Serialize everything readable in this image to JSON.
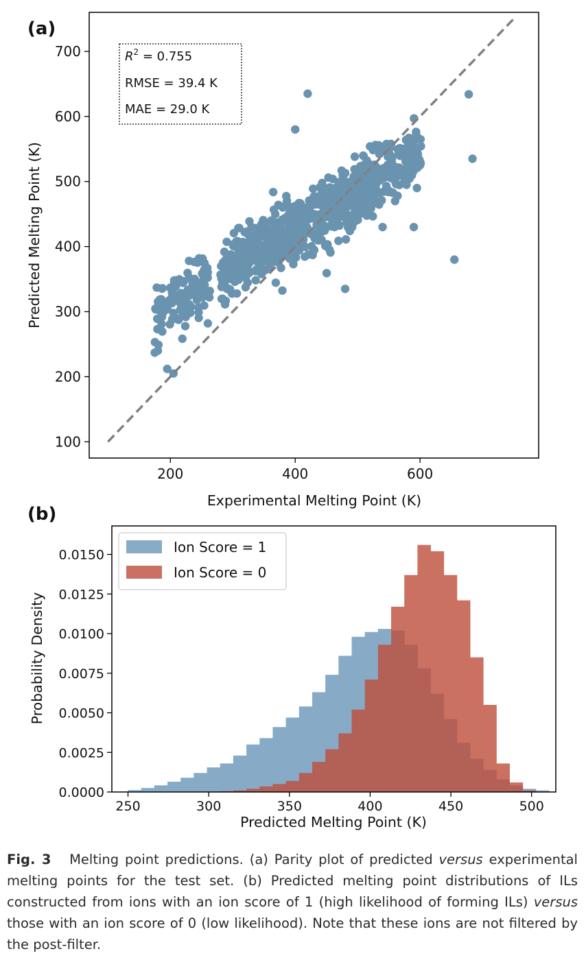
{
  "chart_data": [
    {
      "panel_label": "(a)",
      "type": "scatter",
      "title": "",
      "xlabel": "Experimental Melting Point (K)",
      "ylabel": "Predicted Melting Point (K)",
      "xlim": [
        70,
        790
      ],
      "ylim": [
        75,
        760
      ],
      "xticks": [
        200,
        400,
        600
      ],
      "yticks": [
        100,
        200,
        300,
        400,
        500,
        600,
        700
      ],
      "color": "#6a93b0",
      "parity_line": {
        "x": [
          100,
          750
        ],
        "y": [
          100,
          750
        ],
        "style": "dashed",
        "color": "#808080"
      },
      "stats_box": [
        "R² = 0.755",
        "RMSE = 39.4 K",
        "MAE = 29.0 K"
      ],
      "stats": {
        "R2": "0.755",
        "RMSE": "39.4 K",
        "MAE": "29.0 K"
      },
      "bulk_description": "about 1000 points along y = 0.59x + 190 with ~25 K scatter between x = 175 and 605",
      "x": [
        420,
        678,
        400,
        684,
        655,
        590,
        175,
        180,
        205,
        195,
        230,
        260,
        240,
        480,
        540,
        560,
        575,
        555,
        595,
        600,
        510,
        330,
        380,
        430,
        460
      ],
      "y": [
        635,
        634,
        580,
        535,
        380,
        430,
        237,
        240,
        205,
        212,
        378,
        360,
        325,
        335,
        430,
        470,
        500,
        535,
        490,
        525,
        520,
        430,
        460,
        475,
        440
      ]
    },
    {
      "panel_label": "(b)",
      "type": "histogram",
      "title": "",
      "xlabel": "Predicted Melting Point (K)",
      "ylabel": "Probability Density",
      "xlim": [
        240,
        515
      ],
      "ylim": [
        0,
        0.0168
      ],
      "xticks": [
        250,
        300,
        350,
        400,
        450,
        500
      ],
      "yticks": [
        "0.0000",
        "0.0025",
        "0.0050",
        "0.0075",
        "0.0100",
        "0.0125",
        "0.0150"
      ],
      "bin_start": 250,
      "bin_width": 8.15,
      "legend_position": "top-left",
      "series": [
        {
          "name": "Ion Score = 1",
          "color": "#6a97b8",
          "values": [
            0.00012,
            0.00025,
            0.00042,
            0.00065,
            0.0009,
            0.0012,
            0.00155,
            0.0018,
            0.0023,
            0.003,
            0.0034,
            0.0041,
            0.0047,
            0.0054,
            0.0063,
            0.0074,
            0.0086,
            0.0098,
            0.0101,
            0.0103,
            0.0102,
            0.0093,
            0.0078,
            0.0062,
            0.0046,
            0.0031,
            0.0021,
            0.0014,
            0.0008,
            0.0004,
            0.0002,
            0.0001
          ]
        },
        {
          "name": "Ion Score = 0",
          "color": "#be4e3c",
          "values": [
            0,
            0,
            0,
            0,
            0,
            0,
            0,
            5e-05,
            0.0001,
            0.0002,
            0.00035,
            0.0005,
            0.0007,
            0.0012,
            0.0019,
            0.0027,
            0.0037,
            0.0052,
            0.0071,
            0.0093,
            0.0117,
            0.0137,
            0.0156,
            0.0152,
            0.0137,
            0.0121,
            0.0085,
            0.0055,
            0.0018,
            0.0006,
            0.0001,
            0
          ]
        }
      ]
    }
  ],
  "caption": {
    "label": "Fig. 3",
    "text_1": "Melting point predictions. (a) Parity plot of predicted ",
    "versus_1": "versus",
    "text_2": " experimental melting points for the test set. (b) Predicted melting point distributions of ILs constructed from ions with an ion score of 1 (high likelihood of forming ILs) ",
    "versus_2": "versus",
    "text_3": " those with an ion score of 0 (low likelihood). Note that these ions are not filtered by the post-filter."
  }
}
